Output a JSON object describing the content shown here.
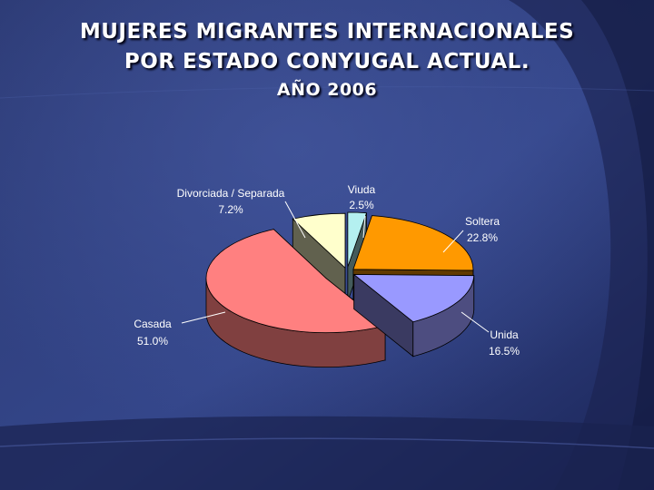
{
  "slide": {
    "title_line1": "MUJERES MIGRANTES INTERNACIONALES",
    "title_line2": "POR ESTADO CONYUGAL ACTUAL.",
    "title_line3": "AÑO 2006"
  },
  "chart_data": {
    "type": "pie",
    "title": "MUJERES MIGRANTES INTERNACIONALES POR ESTADO CONYUGAL ACTUAL. AÑO 2006",
    "unit": "%",
    "legend": "none",
    "slices": [
      {
        "label": "Viuda",
        "value": 2.5,
        "display": "2.5%",
        "color": "#b4f0f0"
      },
      {
        "label": "Soltera",
        "value": 22.8,
        "display": "22.8%",
        "color": "#ff9900"
      },
      {
        "label": "Unida",
        "value": 16.5,
        "display": "16.5%",
        "color": "#9999ff"
      },
      {
        "label": "Casada",
        "value": 51.0,
        "display": "51.0%",
        "color": "#ff8080"
      },
      {
        "label": "Divorciada / Separada",
        "value": 7.2,
        "display": "7.2%",
        "color": "#ffffcc"
      }
    ]
  }
}
